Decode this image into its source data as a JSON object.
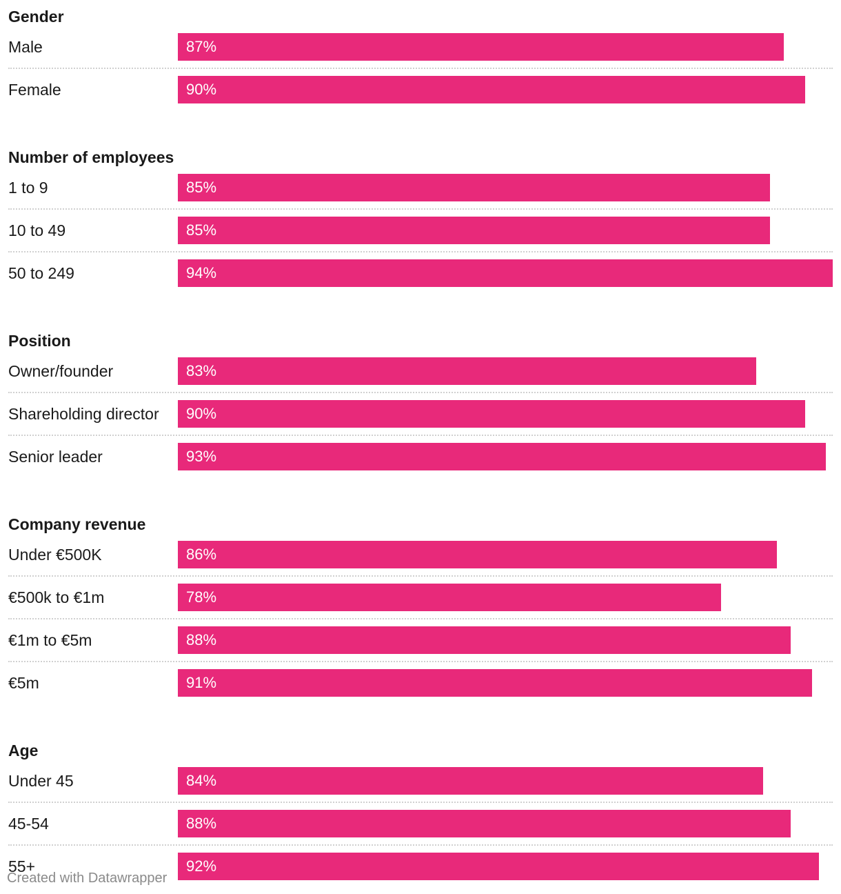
{
  "chart_data": {
    "type": "bar",
    "orientation": "horizontal",
    "value_unit": "%",
    "xlim": [
      0,
      94
    ],
    "bar_color": "#e8297a",
    "groups": [
      {
        "title": "Gender",
        "categories": [
          "Male",
          "Female"
        ],
        "values": [
          87,
          90
        ],
        "labels": [
          "87%",
          "90%"
        ]
      },
      {
        "title": "Number of employees",
        "categories": [
          "1 to 9",
          "10 to 49",
          "50 to 249"
        ],
        "values": [
          85,
          85,
          94
        ],
        "labels": [
          "85%",
          "85%",
          "94%"
        ]
      },
      {
        "title": "Position",
        "categories": [
          "Owner/founder",
          "Shareholding director",
          "Senior leader"
        ],
        "values": [
          83,
          90,
          93
        ],
        "labels": [
          "83%",
          "90%",
          "93%"
        ]
      },
      {
        "title": "Company revenue",
        "categories": [
          "Under €500K",
          "€500k to €1m",
          "€1m to €5m",
          "€5m"
        ],
        "values": [
          86,
          78,
          88,
          91
        ],
        "labels": [
          "86%",
          "78%",
          "88%",
          "91%"
        ]
      },
      {
        "title": "Age",
        "categories": [
          "Under 45",
          "45-54",
          "55+"
        ],
        "values": [
          84,
          88,
          92
        ],
        "labels": [
          "84%",
          "88%",
          "92%"
        ]
      }
    ]
  },
  "footer": {
    "credit": "Created with Datawrapper"
  }
}
